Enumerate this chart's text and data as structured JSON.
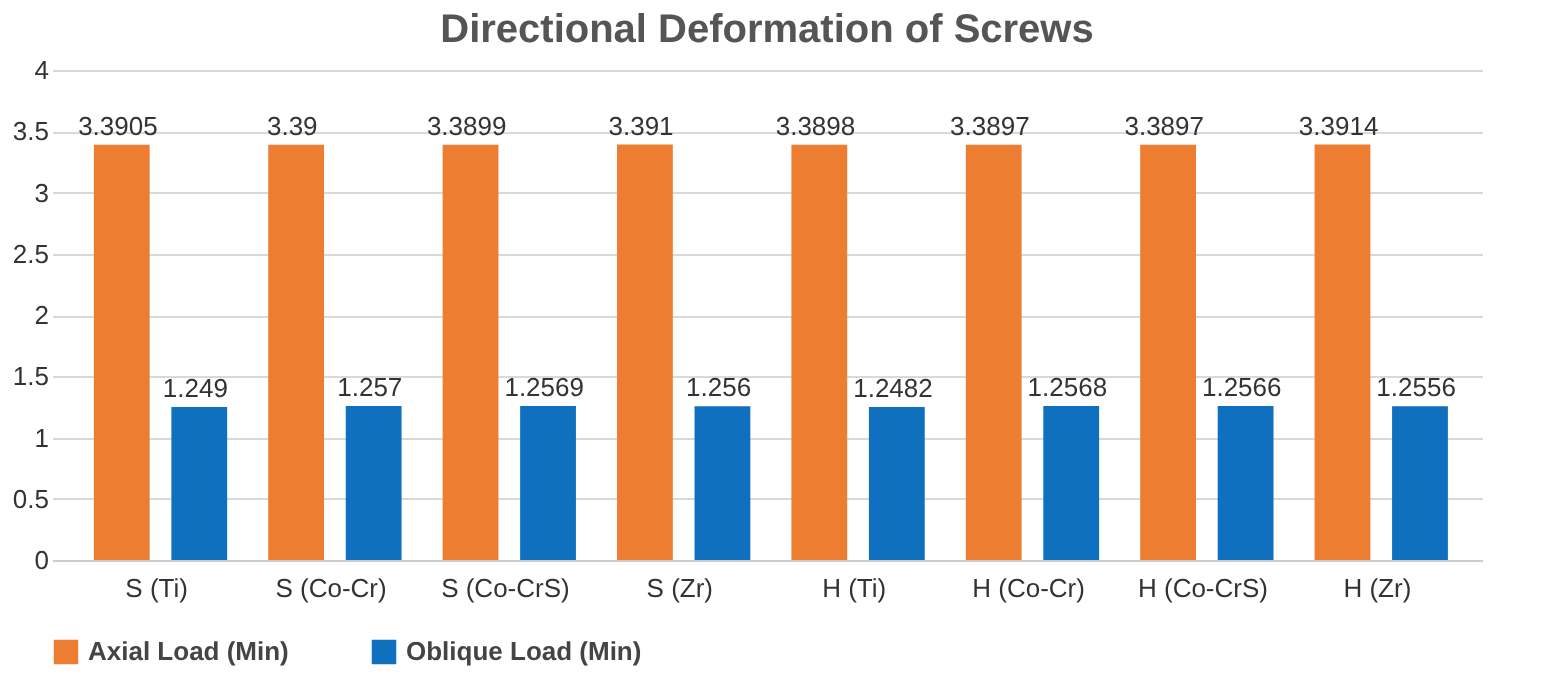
{
  "chart_data": {
    "type": "bar",
    "title": "Directional Deformation of Screws",
    "categories": [
      "S (Ti)",
      "S (Co-Cr)",
      "S (Co-CrS)",
      "S (Zr)",
      "H (Ti)",
      "H (Co-Cr)",
      "H (Co-CrS)",
      "H (Zr)"
    ],
    "series": [
      {
        "name": "Axial Load (Min)",
        "color": "#ed7d31",
        "values": [
          3.3905,
          3.39,
          3.3899,
          3.391,
          3.3898,
          3.3897,
          3.3897,
          3.3914
        ]
      },
      {
        "name": "Oblique Load (Min)",
        "color": "#1070c0",
        "values": [
          1.249,
          1.257,
          1.2569,
          1.256,
          1.2482,
          1.2568,
          1.2566,
          1.2556
        ]
      }
    ],
    "ylim": [
      0,
      4
    ],
    "yticks": [
      0,
      0.5,
      1,
      1.5,
      2,
      2.5,
      3,
      3.5,
      4
    ],
    "grid": "y",
    "legend": "bottom",
    "data_labels": true
  }
}
